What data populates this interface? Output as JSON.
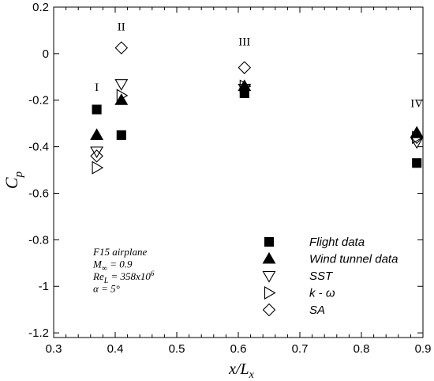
{
  "chart_data": {
    "type": "scatter",
    "xlabel": {
      "main": "x/L",
      "sub": "x"
    },
    "ylabel": {
      "main": "C",
      "sub": "p"
    },
    "xlim": [
      0.3,
      0.9
    ],
    "ylim": [
      -1.22,
      0.2
    ],
    "xticks": [
      {
        "value": 0.3,
        "label": "0.3"
      },
      {
        "value": 0.4,
        "label": "0.4"
      },
      {
        "value": 0.5,
        "label": "0.5"
      },
      {
        "value": 0.6,
        "label": "0.6"
      },
      {
        "value": 0.7,
        "label": "0.7"
      },
      {
        "value": 0.8,
        "label": "0.8"
      },
      {
        "value": 0.9,
        "label": "0.9"
      }
    ],
    "yticks": [
      {
        "value": 0.2,
        "label": "0.2"
      },
      {
        "value": 0,
        "label": "0"
      },
      {
        "value": -0.2,
        "label": "-0.2"
      },
      {
        "value": -0.4,
        "label": "-0.4"
      },
      {
        "value": -0.6,
        "label": "-0.6"
      },
      {
        "value": -0.8,
        "label": "-0.8"
      },
      {
        "value": -1,
        "label": "-1"
      },
      {
        "value": -1.2,
        "label": "-1.2"
      }
    ],
    "grid": false,
    "legend_position": "bottom-right",
    "series": [
      {
        "name": "Flight data",
        "marker": "square-filled",
        "x": [
          0.37,
          0.41,
          0.61,
          0.89
        ],
        "y": [
          -0.24,
          -0.35,
          -0.17,
          -0.47
        ]
      },
      {
        "name": "Wind tunnel data",
        "marker": "triangle-up-filled",
        "x": [
          0.37,
          0.41,
          0.61,
          0.89
        ],
        "y": [
          -0.35,
          -0.2,
          -0.14,
          -0.34
        ]
      },
      {
        "name": "SST",
        "marker": "triangle-down-open",
        "x": [
          0.37,
          0.41,
          0.61,
          0.89
        ],
        "y": [
          -0.42,
          -0.13,
          -0.15,
          -0.38
        ]
      },
      {
        "name": "k - ω",
        "marker": "triangle-right-open",
        "x": [
          0.37,
          0.41,
          0.61,
          0.89
        ],
        "y": [
          -0.49,
          -0.18,
          -0.14,
          -0.36
        ]
      },
      {
        "name": "SA",
        "marker": "diamond-open",
        "x": [
          0.37,
          0.41,
          0.61,
          0.89
        ],
        "y": [
          -0.44,
          0.025,
          -0.06,
          -0.36
        ]
      }
    ],
    "region_labels": [
      {
        "text": "I",
        "x": 0.37,
        "y": -0.16
      },
      {
        "text": "II",
        "x": 0.41,
        "y": 0.1
      },
      {
        "text": "III",
        "x": 0.61,
        "y": 0.035
      },
      {
        "text": "IV",
        "x": 0.89,
        "y": -0.23
      }
    ],
    "annotation": {
      "lines": [
        {
          "main": "F15 airplane"
        },
        {
          "main": "M",
          "sub": "∞",
          "rest": " = 0.9"
        },
        {
          "main": "Re",
          "sub": "L",
          "rest": " = 358x10",
          "sup": "6"
        },
        {
          "main": "α = 5°"
        }
      ]
    }
  }
}
